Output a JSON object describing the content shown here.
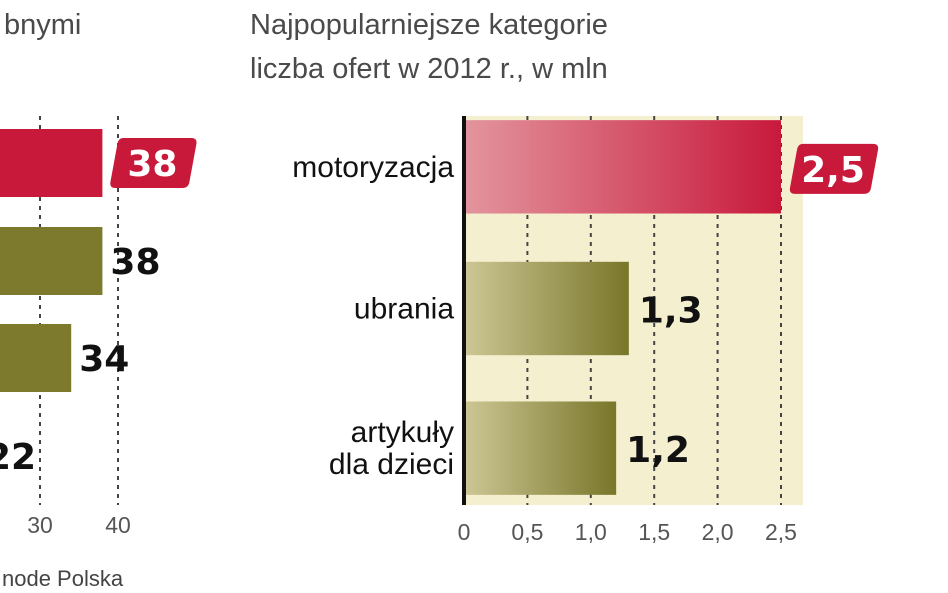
{
  "colors": {
    "highlight": "#c8193b",
    "highlight_light": "#e08a95",
    "olive": "#7d7a2e",
    "olive_light": "#c9c48e",
    "plot_bg": "#f4efcf",
    "axis": "#111111"
  },
  "chart_data": [
    {
      "type": "bar",
      "orientation": "horizontal",
      "title": "",
      "title_fragment": "bnymi",
      "values": [
        38,
        38,
        34,
        22
      ],
      "value_labels": [
        "38",
        "38",
        "34",
        "22"
      ],
      "highlight_index": 0,
      "x_ticks": [
        "30",
        "40"
      ],
      "xlim": [
        0,
        40
      ],
      "source_fragment": "node Polska"
    },
    {
      "type": "bar",
      "orientation": "horizontal",
      "title": "Najpopularniejsze kategorie",
      "subtitle": "liczba ofert w 2012 r., w mln",
      "categories": [
        "motoryzacja",
        "ubrania",
        "artykuły dla dzieci"
      ],
      "category_lines": [
        [
          "motoryzacja"
        ],
        [
          "ubrania"
        ],
        [
          "artykuły",
          "dla dzieci"
        ]
      ],
      "values": [
        2.5,
        1.3,
        1.2
      ],
      "value_labels": [
        "2,5",
        "1,3",
        "1,2"
      ],
      "highlight_index": 0,
      "x_ticks": [
        "0",
        "0,5",
        "1,0",
        "1,5",
        "2,0",
        "2,5"
      ],
      "x_tick_values": [
        0,
        0.5,
        1.0,
        1.5,
        2.0,
        2.5
      ],
      "xlim": [
        0,
        2.5
      ],
      "grid": "vertical-dashed"
    }
  ]
}
